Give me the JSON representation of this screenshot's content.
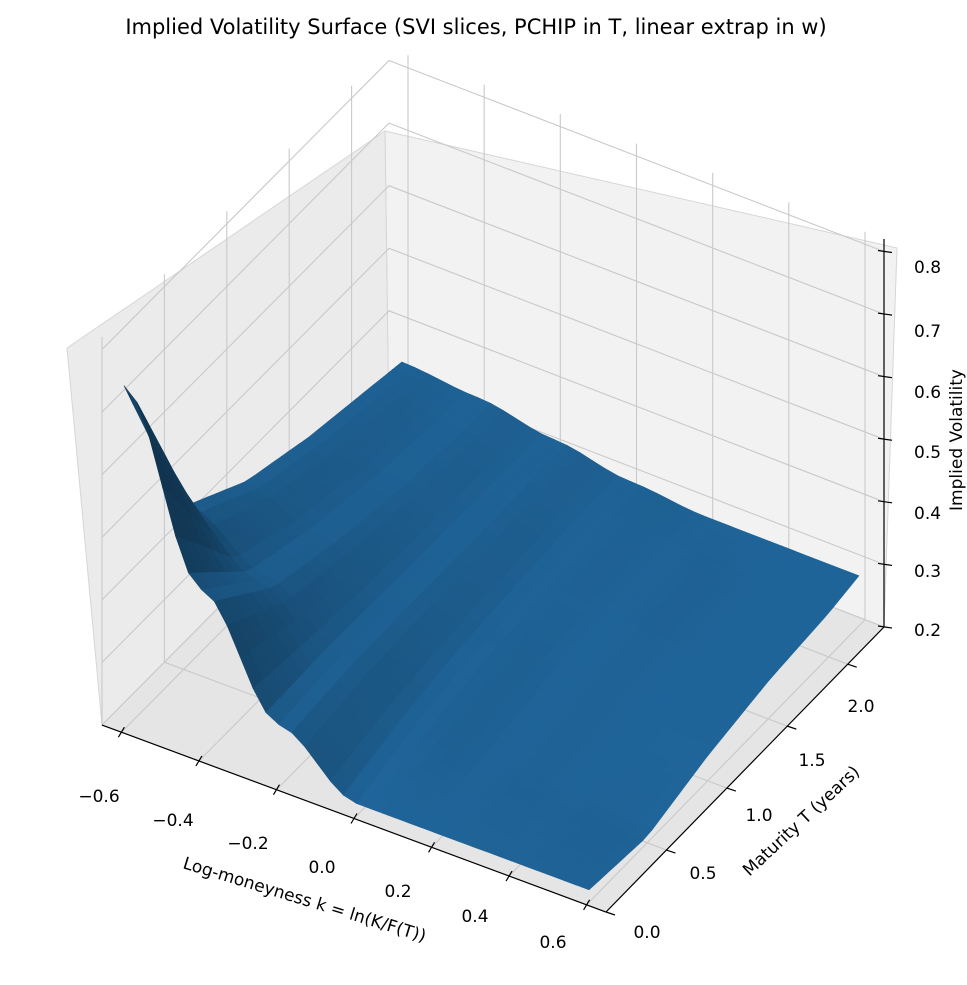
{
  "chart_data": {
    "type": "surface",
    "title": "Implied Volatility Surface (SVI slices, PCHIP in T, linear extrap in w)",
    "xlabel": "Log-moneyness k = ln(K/F(T))",
    "ylabel": "Maturity T (years)",
    "zlabel": "Implied Volatility",
    "xlim": [
      -0.65,
      0.65
    ],
    "ylim": [
      0.0,
      2.3
    ],
    "zlim": [
      0.2,
      0.82
    ],
    "x_ticks": [
      "−0.6",
      "−0.4",
      "−0.2",
      "0.0",
      "0.2",
      "0.4",
      "0.6"
    ],
    "y_ticks": [
      "0.0",
      "0.5",
      "1.0",
      "1.5",
      "2.0"
    ],
    "z_ticks": [
      "0.2",
      "0.3",
      "0.4",
      "0.5",
      "0.6",
      "0.7",
      "0.8"
    ],
    "grid": true,
    "surface_color": "#1f6397",
    "surface": {
      "k": [
        -0.6,
        -0.4,
        -0.2,
        0.0,
        0.2,
        0.4,
        0.6
      ],
      "T": [
        0.02,
        0.5,
        1.0,
        1.5,
        2.0,
        2.25
      ],
      "iv": [
        [
          0.75,
          0.47,
          0.3,
          0.22,
          0.22,
          0.22,
          0.22
        ],
        [
          0.46,
          0.39,
          0.31,
          0.25,
          0.23,
          0.22,
          0.21
        ],
        [
          0.4,
          0.36,
          0.31,
          0.27,
          0.25,
          0.24,
          0.24
        ],
        [
          0.37,
          0.34,
          0.31,
          0.28,
          0.27,
          0.26,
          0.26
        ],
        [
          0.35,
          0.33,
          0.31,
          0.29,
          0.28,
          0.27,
          0.27
        ],
        [
          0.34,
          0.33,
          0.31,
          0.29,
          0.28,
          0.28,
          0.28
        ]
      ]
    }
  }
}
